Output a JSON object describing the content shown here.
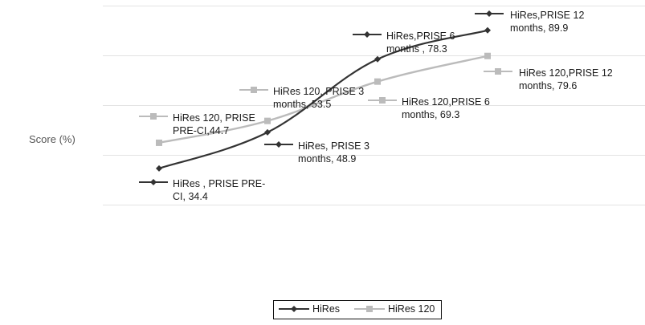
{
  "chart_data": {
    "type": "line",
    "title": "",
    "xlabel": "",
    "ylabel": "Score (%)",
    "categories": [
      "PRE-CI",
      "3 months",
      "6 months",
      "12 months"
    ],
    "ylim": [
      0,
      100
    ],
    "grid": true,
    "legend": "bottom",
    "series": [
      {
        "name": "HiRes",
        "color": "#333333",
        "marker": "diamond",
        "values": [
          34.4,
          48.9,
          78.3,
          89.9
        ],
        "labels": [
          [
            "HiRes , PRISE PRE-",
            "CI, 34.4"
          ],
          [
            "HiRes, PRISE 3",
            "months, 48.9"
          ],
          [
            "HiRes,PRISE 6",
            "months , 78.3"
          ],
          [
            "HiRes,PRISE 12",
            "months, 89.9"
          ]
        ]
      },
      {
        "name": "HiRes 120",
        "color": "#bbbbbb",
        "marker": "square",
        "values": [
          44.7,
          53.5,
          69.3,
          79.6
        ],
        "labels": [
          [
            "HiRes 120, PRISE",
            "PRE-CI,44.7"
          ],
          [
            "HiRes 120, PRISE 3",
            "months, 53.5"
          ],
          [
            "HiRes 120,PRISE 6",
            "months, 69.3"
          ],
          [
            "HiRes 120,PRISE 12",
            "months, 79.6"
          ]
        ]
      }
    ]
  }
}
